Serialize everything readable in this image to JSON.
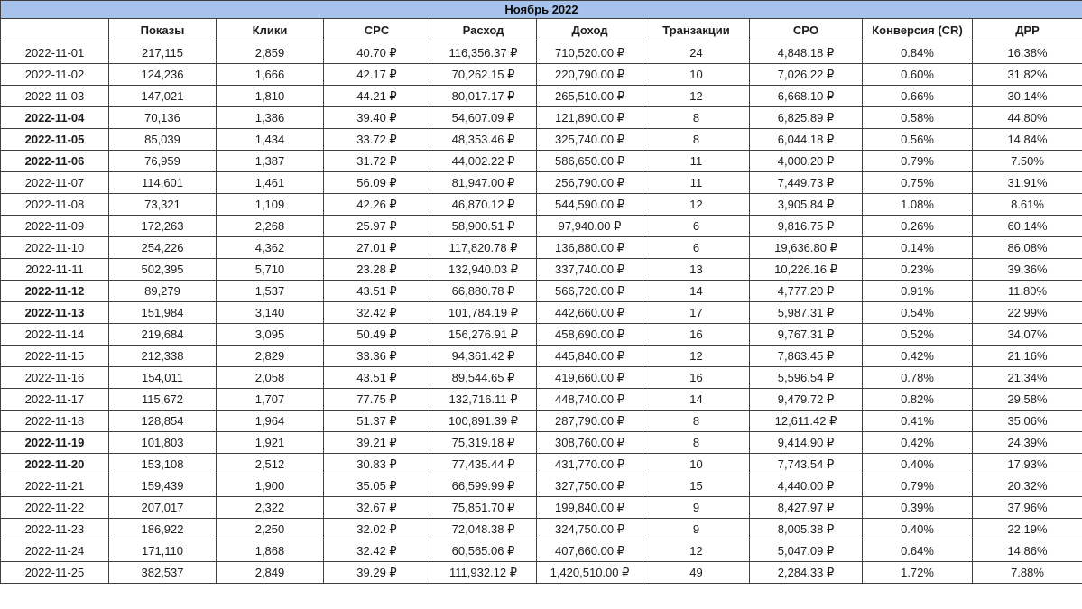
{
  "report": {
    "colors": {
      "title_background": "#a7c3eb",
      "grid_border": "#3f3f3f",
      "cell_text": "#1c1c1c",
      "page_background": "#ffffff"
    }
  },
  "chart_data": {
    "type": "table",
    "title": "Ноябрь 2022",
    "columns": [
      "",
      "Показы",
      "Клики",
      "CPC",
      "Расход",
      "Доход",
      "Транзакции",
      "CPO",
      "Конверсия (CR)",
      "ДРР"
    ],
    "rows": [
      {
        "date": "2022-11-01",
        "bold": false,
        "values": [
          "217,115",
          "2,859",
          "40.70 ₽",
          "116,356.37 ₽",
          "710,520.00 ₽",
          "24",
          "4,848.18 ₽",
          "0.84%",
          "16.38%"
        ]
      },
      {
        "date": "2022-11-02",
        "bold": false,
        "values": [
          "124,236",
          "1,666",
          "42.17 ₽",
          "70,262.15 ₽",
          "220,790.00 ₽",
          "10",
          "7,026.22 ₽",
          "0.60%",
          "31.82%"
        ]
      },
      {
        "date": "2022-11-03",
        "bold": false,
        "values": [
          "147,021",
          "1,810",
          "44.21 ₽",
          "80,017.17 ₽",
          "265,510.00 ₽",
          "12",
          "6,668.10 ₽",
          "0.66%",
          "30.14%"
        ]
      },
      {
        "date": "2022-11-04",
        "bold": true,
        "values": [
          "70,136",
          "1,386",
          "39.40 ₽",
          "54,607.09 ₽",
          "121,890.00 ₽",
          "8",
          "6,825.89 ₽",
          "0.58%",
          "44.80%"
        ]
      },
      {
        "date": "2022-11-05",
        "bold": true,
        "values": [
          "85,039",
          "1,434",
          "33.72 ₽",
          "48,353.46 ₽",
          "325,740.00 ₽",
          "8",
          "6,044.18 ₽",
          "0.56%",
          "14.84%"
        ]
      },
      {
        "date": "2022-11-06",
        "bold": true,
        "values": [
          "76,959",
          "1,387",
          "31.72 ₽",
          "44,002.22 ₽",
          "586,650.00 ₽",
          "11",
          "4,000.20 ₽",
          "0.79%",
          "7.50%"
        ]
      },
      {
        "date": "2022-11-07",
        "bold": false,
        "values": [
          "114,601",
          "1,461",
          "56.09 ₽",
          "81,947.00 ₽",
          "256,790.00 ₽",
          "11",
          "7,449.73 ₽",
          "0.75%",
          "31.91%"
        ]
      },
      {
        "date": "2022-11-08",
        "bold": false,
        "values": [
          "73,321",
          "1,109",
          "42.26 ₽",
          "46,870.12 ₽",
          "544,590.00 ₽",
          "12",
          "3,905.84 ₽",
          "1.08%",
          "8.61%"
        ]
      },
      {
        "date": "2022-11-09",
        "bold": false,
        "values": [
          "172,263",
          "2,268",
          "25.97 ₽",
          "58,900.51 ₽",
          "97,940.00 ₽",
          "6",
          "9,816.75 ₽",
          "0.26%",
          "60.14%"
        ]
      },
      {
        "date": "2022-11-10",
        "bold": false,
        "values": [
          "254,226",
          "4,362",
          "27.01 ₽",
          "117,820.78 ₽",
          "136,880.00 ₽",
          "6",
          "19,636.80 ₽",
          "0.14%",
          "86.08%"
        ]
      },
      {
        "date": "2022-11-11",
        "bold": false,
        "values": [
          "502,395",
          "5,710",
          "23.28 ₽",
          "132,940.03 ₽",
          "337,740.00 ₽",
          "13",
          "10,226.16 ₽",
          "0.23%",
          "39.36%"
        ]
      },
      {
        "date": "2022-11-12",
        "bold": true,
        "values": [
          "89,279",
          "1,537",
          "43.51 ₽",
          "66,880.78 ₽",
          "566,720.00 ₽",
          "14",
          "4,777.20 ₽",
          "0.91%",
          "11.80%"
        ]
      },
      {
        "date": "2022-11-13",
        "bold": true,
        "values": [
          "151,984",
          "3,140",
          "32.42 ₽",
          "101,784.19 ₽",
          "442,660.00 ₽",
          "17",
          "5,987.31 ₽",
          "0.54%",
          "22.99%"
        ]
      },
      {
        "date": "2022-11-14",
        "bold": false,
        "values": [
          "219,684",
          "3,095",
          "50.49 ₽",
          "156,276.91 ₽",
          "458,690.00 ₽",
          "16",
          "9,767.31 ₽",
          "0.52%",
          "34.07%"
        ]
      },
      {
        "date": "2022-11-15",
        "bold": false,
        "values": [
          "212,338",
          "2,829",
          "33.36 ₽",
          "94,361.42 ₽",
          "445,840.00 ₽",
          "12",
          "7,863.45 ₽",
          "0.42%",
          "21.16%"
        ]
      },
      {
        "date": "2022-11-16",
        "bold": false,
        "values": [
          "154,011",
          "2,058",
          "43.51 ₽",
          "89,544.65 ₽",
          "419,660.00 ₽",
          "16",
          "5,596.54 ₽",
          "0.78%",
          "21.34%"
        ]
      },
      {
        "date": "2022-11-17",
        "bold": false,
        "values": [
          "115,672",
          "1,707",
          "77.75 ₽",
          "132,716.11 ₽",
          "448,740.00 ₽",
          "14",
          "9,479.72 ₽",
          "0.82%",
          "29.58%"
        ]
      },
      {
        "date": "2022-11-18",
        "bold": false,
        "values": [
          "128,854",
          "1,964",
          "51.37 ₽",
          "100,891.39 ₽",
          "287,790.00 ₽",
          "8",
          "12,611.42 ₽",
          "0.41%",
          "35.06%"
        ]
      },
      {
        "date": "2022-11-19",
        "bold": true,
        "values": [
          "101,803",
          "1,921",
          "39.21 ₽",
          "75,319.18 ₽",
          "308,760.00 ₽",
          "8",
          "9,414.90 ₽",
          "0.42%",
          "24.39%"
        ]
      },
      {
        "date": "2022-11-20",
        "bold": true,
        "values": [
          "153,108",
          "2,512",
          "30.83 ₽",
          "77,435.44 ₽",
          "431,770.00 ₽",
          "10",
          "7,743.54 ₽",
          "0.40%",
          "17.93%"
        ]
      },
      {
        "date": "2022-11-21",
        "bold": false,
        "values": [
          "159,439",
          "1,900",
          "35.05 ₽",
          "66,599.99 ₽",
          "327,750.00 ₽",
          "15",
          "4,440.00 ₽",
          "0.79%",
          "20.32%"
        ]
      },
      {
        "date": "2022-11-22",
        "bold": false,
        "values": [
          "207,017",
          "2,322",
          "32.67 ₽",
          "75,851.70 ₽",
          "199,840.00 ₽",
          "9",
          "8,427.97 ₽",
          "0.39%",
          "37.96%"
        ]
      },
      {
        "date": "2022-11-23",
        "bold": false,
        "values": [
          "186,922",
          "2,250",
          "32.02 ₽",
          "72,048.38 ₽",
          "324,750.00 ₽",
          "9",
          "8,005.38 ₽",
          "0.40%",
          "22.19%"
        ]
      },
      {
        "date": "2022-11-24",
        "bold": false,
        "values": [
          "171,110",
          "1,868",
          "32.42 ₽",
          "60,565.06 ₽",
          "407,660.00 ₽",
          "12",
          "5,047.09 ₽",
          "0.64%",
          "14.86%"
        ]
      },
      {
        "date": "2022-11-25",
        "bold": false,
        "values": [
          "382,537",
          "2,849",
          "39.29 ₽",
          "111,932.12 ₽",
          "1,420,510.00 ₽",
          "49",
          "2,284.33 ₽",
          "1.72%",
          "7.88%"
        ]
      }
    ]
  }
}
